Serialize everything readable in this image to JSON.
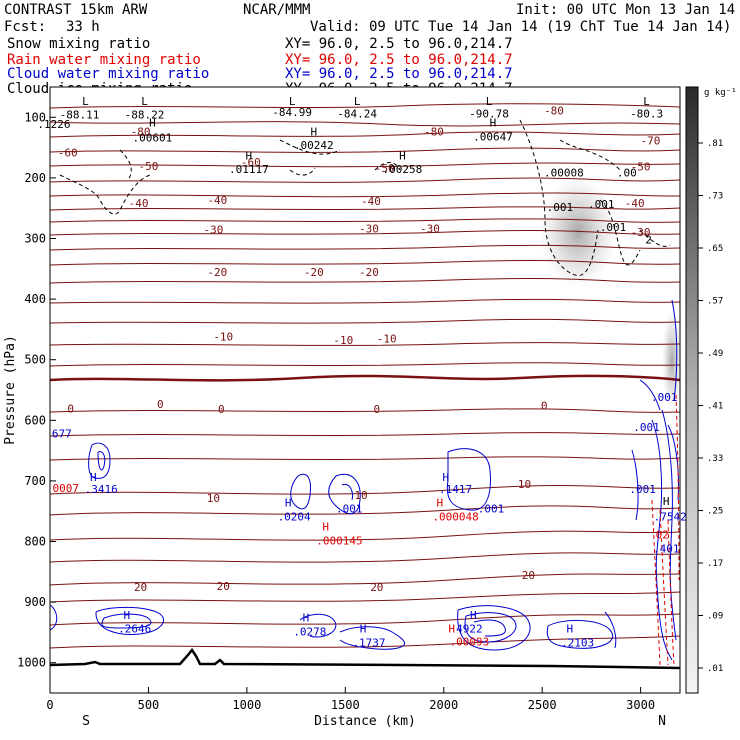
{
  "header": {
    "model": "CONTRAST 15km ARW",
    "org": "NCAR/MMM",
    "init": "Init: 00 UTC Mon 13 Jan 14",
    "fcst_label": "Fcst:",
    "fcst_value": "33 h",
    "valid": "Valid: 09 UTC Tue 14 Jan 14 (19 ChT Tue 14 Jan 14)"
  },
  "fields": [
    {
      "name": "Snow mixing ratio",
      "xy": "XY=  96.0,  2.5 to  96.0,214.7",
      "color": "#000000"
    },
    {
      "name": "Rain water mixing ratio",
      "xy": "XY=  96.0,  2.5 to  96.0,214.7",
      "color": "#e00000"
    },
    {
      "name": "Cloud water mixing ratio",
      "xy": "XY=  96.0,  2.5 to  96.0,214.7",
      "color": "#0000cc"
    },
    {
      "name": "Cloud ice mixing ratio",
      "xy": "XY=  96.0,  2.5 to  96.0,214.7",
      "color": "#000000"
    }
  ],
  "chart_data": {
    "type": "cross-section contour",
    "xlabel": "Distance (km)",
    "ylabel": "Pressure (hPa)",
    "xlim": [
      0,
      3200
    ],
    "ylim": [
      1050,
      50
    ],
    "x_ticks": [
      0,
      500,
      1000,
      1500,
      2000,
      2500,
      3000
    ],
    "y_ticks": [
      100,
      200,
      300,
      400,
      500,
      600,
      700,
      800,
      900,
      1000
    ],
    "end_labels": {
      "left": "S",
      "right": "N"
    },
    "colorbar": {
      "unit": "g kg⁻¹",
      "ticks": [
        ".81",
        ".73",
        ".65",
        ".57",
        ".49",
        ".41",
        ".33",
        ".25",
        ".17",
        ".09",
        ".01"
      ]
    },
    "temperature_isotherm_labels": [
      {
        "x": 460,
        "p": 130,
        "text": "-80"
      },
      {
        "x": 1950,
        "p": 130,
        "text": "-80"
      },
      {
        "x": 2560,
        "p": 95,
        "text": "-80"
      },
      {
        "x": 3050,
        "p": 145,
        "text": "-70"
      },
      {
        "x": 90,
        "p": 165,
        "text": "-60"
      },
      {
        "x": 1020,
        "p": 180,
        "text": "-60"
      },
      {
        "x": 500,
        "p": 187,
        "text": "-50"
      },
      {
        "x": 1700,
        "p": 190,
        "text": "-50"
      },
      {
        "x": 3000,
        "p": 188,
        "text": "-50"
      },
      {
        "x": 450,
        "p": 248,
        "text": "-40"
      },
      {
        "x": 850,
        "p": 243,
        "text": "-40"
      },
      {
        "x": 1630,
        "p": 245,
        "text": "-40"
      },
      {
        "x": 2970,
        "p": 248,
        "text": "-40"
      },
      {
        "x": 830,
        "p": 292,
        "text": "-30"
      },
      {
        "x": 1620,
        "p": 290,
        "text": "-30"
      },
      {
        "x": 1930,
        "p": 290,
        "text": "-30"
      },
      {
        "x": 3000,
        "p": 296,
        "text": "-30"
      },
      {
        "x": 850,
        "p": 362,
        "text": "-20"
      },
      {
        "x": 1340,
        "p": 362,
        "text": "-20"
      },
      {
        "x": 1620,
        "p": 362,
        "text": "-20"
      },
      {
        "x": 880,
        "p": 468,
        "text": "-10"
      },
      {
        "x": 1490,
        "p": 474,
        "text": "-10"
      },
      {
        "x": 1710,
        "p": 472,
        "text": "-10"
      },
      {
        "x": 105,
        "p": 587,
        "text": "0"
      },
      {
        "x": 560,
        "p": 580,
        "text": "0"
      },
      {
        "x": 870,
        "p": 588,
        "text": "0"
      },
      {
        "x": 1660,
        "p": 588,
        "text": "0"
      },
      {
        "x": 2510,
        "p": 582,
        "text": "0"
      },
      {
        "x": 830,
        "p": 735,
        "text": "10"
      },
      {
        "x": 1580,
        "p": 730,
        "text": "10"
      },
      {
        "x": 2410,
        "p": 712,
        "text": "10"
      },
      {
        "x": 460,
        "p": 882,
        "text": "20"
      },
      {
        "x": 880,
        "p": 880,
        "text": "20"
      },
      {
        "x": 1660,
        "p": 882,
        "text": "20"
      },
      {
        "x": 2430,
        "p": 862,
        "text": "20"
      }
    ],
    "extrema_labels": [
      {
        "x": 180,
        "p": 80,
        "text": "L",
        "color": "#000000"
      },
      {
        "x": 150,
        "p": 102,
        "text": "-88.11",
        "color": "#000000"
      },
      {
        "x": 480,
        "p": 80,
        "text": "L",
        "color": "#000000"
      },
      {
        "x": 480,
        "p": 102,
        "text": "-88.22",
        "color": "#000000"
      },
      {
        "x": 1230,
        "p": 80,
        "text": "L",
        "color": "#000000"
      },
      {
        "x": 1230,
        "p": 98,
        "text": "-84.99",
        "color": "#000000"
      },
      {
        "x": 1560,
        "p": 80,
        "text": "L",
        "color": "#000000"
      },
      {
        "x": 1560,
        "p": 100,
        "text": "-84.24",
        "color": "#000000"
      },
      {
        "x": 2230,
        "p": 80,
        "text": "L",
        "color": "#000000"
      },
      {
        "x": 2230,
        "p": 100,
        "text": "-90.78",
        "color": "#000000"
      },
      {
        "x": 3030,
        "p": 80,
        "text": "L",
        "color": "#000000"
      },
      {
        "x": 3030,
        "p": 100,
        "text": "-80.3",
        "color": "#000000"
      },
      {
        "x": 20,
        "p": 118,
        "text": ".1226",
        "color": "#000000"
      },
      {
        "x": 520,
        "p": 115,
        "text": "H",
        "color": "#000000"
      },
      {
        "x": 520,
        "p": 140,
        "text": ".00601",
        "color": "#000000"
      },
      {
        "x": 1340,
        "p": 130,
        "text": "H",
        "color": "#000000"
      },
      {
        "x": 1340,
        "p": 152,
        "text": ".00242",
        "color": "#000000"
      },
      {
        "x": 1010,
        "p": 170,
        "text": "H",
        "color": "#000000"
      },
      {
        "x": 1010,
        "p": 192,
        "text": ".01117",
        "color": "#000000"
      },
      {
        "x": 1790,
        "p": 170,
        "text": "H",
        "color": "#000000"
      },
      {
        "x": 1790,
        "p": 192,
        "text": ".00258",
        "color": "#000000"
      },
      {
        "x": 2250,
        "p": 115,
        "text": "H",
        "color": "#000000"
      },
      {
        "x": 2250,
        "p": 138,
        "text": ".00647",
        "color": "#000000"
      },
      {
        "x": 2610,
        "p": 198,
        "text": ".00008",
        "color": "#000000"
      },
      {
        "x": 2930,
        "p": 198,
        "text": ".00",
        "color": "#000000"
      },
      {
        "x": 2590,
        "p": 255,
        "text": ".001",
        "color": "#000000"
      },
      {
        "x": 2800,
        "p": 250,
        "text": ".001",
        "color": "#000000"
      },
      {
        "x": 2860,
        "p": 288,
        "text": ".001",
        "color": "#000000"
      },
      {
        "x": 3040,
        "p": 308,
        "text": "2",
        "color": "#000000"
      },
      {
        "x": 3120,
        "p": 568,
        "text": ".001",
        "color": "#0000cc"
      },
      {
        "x": 3030,
        "p": 618,
        "text": ".001",
        "color": "#0000cc"
      },
      {
        "x": 3010,
        "p": 720,
        "text": ".001",
        "color": "#0000cc"
      },
      {
        "x": 60,
        "p": 628,
        "text": "677",
        "color": "#0000cc"
      },
      {
        "x": 80,
        "p": 718,
        "text": "0007",
        "color": "#e00000"
      },
      {
        "x": 220,
        "p": 700,
        "text": "H",
        "color": "#0000cc"
      },
      {
        "x": 260,
        "p": 720,
        "text": ".3416",
        "color": "#0000cc"
      },
      {
        "x": 1210,
        "p": 742,
        "text": "H",
        "color": "#0000cc"
      },
      {
        "x": 1240,
        "p": 765,
        "text": ".0204",
        "color": "#0000cc"
      },
      {
        "x": 1520,
        "p": 752,
        "text": ".001",
        "color": "#0000cc"
      },
      {
        "x": 1400,
        "p": 782,
        "text": "H",
        "color": "#e00000"
      },
      {
        "x": 1470,
        "p": 805,
        "text": ".000145",
        "color": "#e00000"
      },
      {
        "x": 2010,
        "p": 700,
        "text": "H",
        "color": "#0000cc"
      },
      {
        "x": 2060,
        "p": 720,
        "text": ".1417",
        "color": "#0000cc"
      },
      {
        "x": 1980,
        "p": 742,
        "text": "H",
        "color": "#e00000"
      },
      {
        "x": 2060,
        "p": 765,
        "text": ".000048",
        "color": "#e00000"
      },
      {
        "x": 2240,
        "p": 752,
        "text": ".001",
        "color": "#0000cc"
      },
      {
        "x": 3130,
        "p": 740,
        "text": "H",
        "color": "#000000"
      },
      {
        "x": 3150,
        "p": 765,
        "text": ".7542",
        "color": "#0000cc"
      },
      {
        "x": 3110,
        "p": 795,
        "text": "02",
        "color": "#e00000"
      },
      {
        "x": 3130,
        "p": 818,
        "text": ".401",
        "color": "#0000cc"
      },
      {
        "x": 390,
        "p": 928,
        "text": "H",
        "color": "#0000cc"
      },
      {
        "x": 430,
        "p": 950,
        "text": ".2646",
        "color": "#0000cc"
      },
      {
        "x": 1300,
        "p": 932,
        "text": "H",
        "color": "#0000cc"
      },
      {
        "x": 1320,
        "p": 955,
        "text": ".0278",
        "color": "#0000cc"
      },
      {
        "x": 1590,
        "p": 950,
        "text": "H",
        "color": "#0000cc"
      },
      {
        "x": 1620,
        "p": 973,
        "text": ".1737",
        "color": "#0000cc"
      },
      {
        "x": 2150,
        "p": 928,
        "text": "H",
        "color": "#0000cc"
      },
      {
        "x": 2130,
        "p": 950,
        "text": "4922",
        "color": "#0000cc"
      },
      {
        "x": 2040,
        "p": 950,
        "text": "H",
        "color": "#e00000"
      },
      {
        "x": 2130,
        "p": 972,
        "text": ".00093",
        "color": "#e00000"
      },
      {
        "x": 2640,
        "p": 950,
        "text": "H",
        "color": "#0000cc"
      },
      {
        "x": 2680,
        "p": 973,
        "text": ".2103",
        "color": "#0000cc"
      }
    ]
  }
}
